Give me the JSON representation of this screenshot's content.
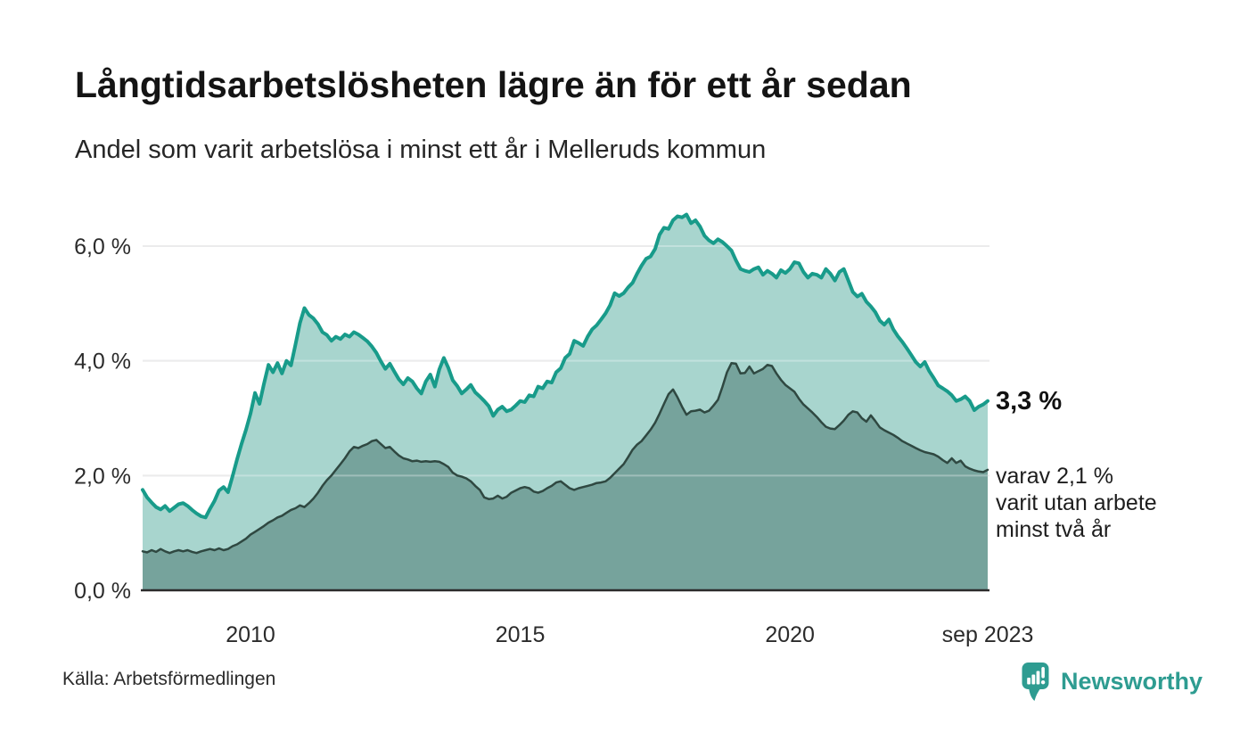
{
  "header": {
    "title": "Långtidsarbetslösheten lägre än för ett år sedan",
    "subtitle": "Andel som varit arbetslösa i minst ett år i Melleruds kommun"
  },
  "annotations": {
    "latest_total": "3,3 %",
    "sub_line1": "varav 2,1 %",
    "sub_line2": "varit utan arbete",
    "sub_line3": "minst två år"
  },
  "footer": {
    "source": "Källa: Arbetsförmedlingen",
    "logo_text": "Newsworthy"
  },
  "brand": {
    "teal": "#2e9c91"
  },
  "chart_data": {
    "type": "area",
    "title": "Andel som varit arbetslösa i minst ett år i Melleruds kommun",
    "x_start_month": "2008-01",
    "x_end_month": "2023-09",
    "ylim": [
      0,
      6.8
    ],
    "grid": "horizontal",
    "colors": {
      "gridline": "#e2e2e4",
      "grid_overlay": "rgba(255,255,255,0.3)",
      "axis": "#2b2b2b"
    },
    "y_ticks": [
      {
        "v": 0,
        "label": "0,0 %"
      },
      {
        "v": 2,
        "label": "2,0 %"
      },
      {
        "v": 4,
        "label": "4,0 %"
      },
      {
        "v": 6,
        "label": "6,0 %"
      }
    ],
    "x_ticks": [
      {
        "i": 24,
        "label": "2010"
      },
      {
        "i": 84,
        "label": "2015"
      },
      {
        "i": 144,
        "label": "2020"
      },
      {
        "i": 188,
        "label": "sep 2023"
      }
    ],
    "series": [
      {
        "name": "Arbetslösa minst ett år",
        "latest_value": 3.3,
        "stroke": "#189b8a",
        "stroke_width": 4,
        "fill": "#a8d5ce",
        "values": [
          1.75,
          1.62,
          1.53,
          1.45,
          1.41,
          1.47,
          1.38,
          1.44,
          1.5,
          1.52,
          1.47,
          1.4,
          1.34,
          1.29,
          1.27,
          1.42,
          1.56,
          1.74,
          1.8,
          1.71,
          1.99,
          2.28,
          2.55,
          2.8,
          3.08,
          3.44,
          3.25,
          3.6,
          3.93,
          3.8,
          3.96,
          3.78,
          4.0,
          3.92,
          4.28,
          4.66,
          4.92,
          4.8,
          4.74,
          4.64,
          4.5,
          4.45,
          4.35,
          4.42,
          4.38,
          4.46,
          4.42,
          4.5,
          4.46,
          4.4,
          4.34,
          4.25,
          4.14,
          3.99,
          3.86,
          3.95,
          3.81,
          3.68,
          3.59,
          3.7,
          3.64,
          3.52,
          3.43,
          3.64,
          3.76,
          3.55,
          3.85,
          4.05,
          3.88,
          3.66,
          3.56,
          3.43,
          3.5,
          3.58,
          3.45,
          3.38,
          3.3,
          3.21,
          3.04,
          3.15,
          3.2,
          3.12,
          3.15,
          3.22,
          3.3,
          3.28,
          3.4,
          3.38,
          3.55,
          3.52,
          3.64,
          3.62,
          3.8,
          3.87,
          4.05,
          4.12,
          4.35,
          4.31,
          4.26,
          4.42,
          4.55,
          4.62,
          4.72,
          4.83,
          4.97,
          5.18,
          5.13,
          5.18,
          5.28,
          5.36,
          5.52,
          5.66,
          5.78,
          5.82,
          5.95,
          6.2,
          6.32,
          6.3,
          6.45,
          6.52,
          6.5,
          6.55,
          6.4,
          6.45,
          6.34,
          6.18,
          6.1,
          6.05,
          6.12,
          6.07,
          6.0,
          5.92,
          5.75,
          5.6,
          5.57,
          5.55,
          5.6,
          5.63,
          5.5,
          5.57,
          5.52,
          5.45,
          5.58,
          5.53,
          5.6,
          5.72,
          5.7,
          5.55,
          5.45,
          5.52,
          5.5,
          5.45,
          5.6,
          5.52,
          5.4,
          5.55,
          5.6,
          5.4,
          5.2,
          5.12,
          5.17,
          5.03,
          4.95,
          4.85,
          4.7,
          4.63,
          4.72,
          4.55,
          4.43,
          4.33,
          4.22,
          4.1,
          3.98,
          3.9,
          3.98,
          3.82,
          3.7,
          3.57,
          3.52,
          3.47,
          3.4,
          3.3,
          3.33,
          3.38,
          3.3,
          3.14,
          3.2,
          3.24,
          3.3
        ]
      },
      {
        "name": "varav utan arbete minst två år",
        "latest_value": 2.1,
        "stroke": "#2f4841",
        "stroke_width": 2.5,
        "fill": "#76a39c",
        "values": [
          0.68,
          0.66,
          0.7,
          0.67,
          0.72,
          0.68,
          0.65,
          0.68,
          0.7,
          0.68,
          0.7,
          0.67,
          0.65,
          0.68,
          0.7,
          0.72,
          0.7,
          0.73,
          0.7,
          0.72,
          0.77,
          0.8,
          0.85,
          0.9,
          0.97,
          1.02,
          1.07,
          1.12,
          1.18,
          1.22,
          1.27,
          1.3,
          1.35,
          1.4,
          1.43,
          1.48,
          1.45,
          1.52,
          1.6,
          1.7,
          1.82,
          1.92,
          2.0,
          2.1,
          2.2,
          2.3,
          2.42,
          2.5,
          2.48,
          2.52,
          2.55,
          2.6,
          2.62,
          2.55,
          2.48,
          2.5,
          2.42,
          2.35,
          2.3,
          2.28,
          2.25,
          2.26,
          2.24,
          2.25,
          2.24,
          2.25,
          2.24,
          2.2,
          2.15,
          2.05,
          2.0,
          1.98,
          1.95,
          1.9,
          1.82,
          1.75,
          1.62,
          1.59,
          1.6,
          1.65,
          1.6,
          1.63,
          1.7,
          1.74,
          1.78,
          1.8,
          1.78,
          1.72,
          1.7,
          1.73,
          1.78,
          1.82,
          1.88,
          1.9,
          1.84,
          1.78,
          1.75,
          1.78,
          1.8,
          1.82,
          1.84,
          1.87,
          1.88,
          1.9,
          1.96,
          2.04,
          2.12,
          2.2,
          2.32,
          2.45,
          2.54,
          2.6,
          2.7,
          2.8,
          2.92,
          3.08,
          3.25,
          3.42,
          3.5,
          3.36,
          3.2,
          3.06,
          3.12,
          3.13,
          3.15,
          3.1,
          3.13,
          3.22,
          3.32,
          3.55,
          3.8,
          3.96,
          3.95,
          3.78,
          3.79,
          3.9,
          3.78,
          3.82,
          3.86,
          3.93,
          3.91,
          3.78,
          3.67,
          3.58,
          3.52,
          3.46,
          3.34,
          3.24,
          3.17,
          3.1,
          3.02,
          2.93,
          2.85,
          2.82,
          2.81,
          2.88,
          2.96,
          3.06,
          3.12,
          3.1,
          3.0,
          2.94,
          3.05,
          2.95,
          2.84,
          2.79,
          2.75,
          2.71,
          2.66,
          2.6,
          2.56,
          2.52,
          2.48,
          2.44,
          2.41,
          2.39,
          2.37,
          2.33,
          2.27,
          2.22,
          2.3,
          2.22,
          2.26,
          2.16,
          2.12,
          2.09,
          2.07,
          2.06,
          2.1
        ]
      }
    ]
  }
}
